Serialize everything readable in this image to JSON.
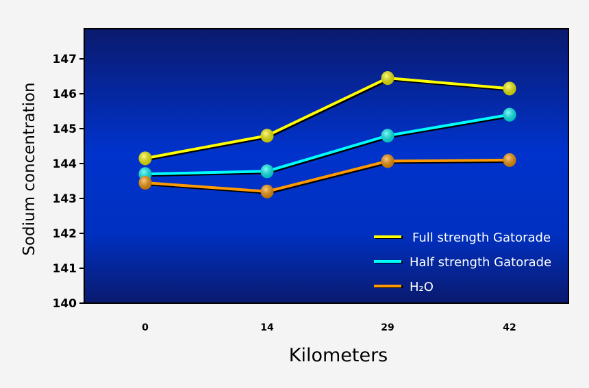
{
  "chart_data": {
    "type": "line",
    "xlabel": "Kilometers",
    "ylabel": "Sodium concentration",
    "categories": [
      "0",
      "14",
      "29",
      "42"
    ],
    "ylim": [
      140,
      147
    ],
    "yticks": [
      "140",
      "141",
      "142",
      "143",
      "144",
      "145",
      "146",
      "147"
    ],
    "grid": false,
    "legend_position": "bottom-right",
    "series": [
      {
        "name": "Full strength Gatorade",
        "color": "#ffff00",
        "values": [
          144.15,
          144.8,
          146.45,
          146.15
        ]
      },
      {
        "name": "Half strength Gatorade",
        "color": "#00ffff",
        "values": [
          143.7,
          143.78,
          144.8,
          145.4
        ]
      },
      {
        "name": "H₂O",
        "color": "#ff9900",
        "values": [
          143.45,
          143.2,
          144.07,
          144.1
        ]
      }
    ],
    "plot_background": [
      "#0a1a6e",
      "#0033cc",
      "#0a1a6e"
    ]
  }
}
